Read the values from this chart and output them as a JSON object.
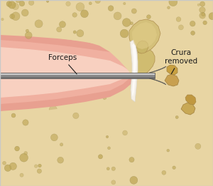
{
  "bg_bone_color": "#e8d5a3",
  "canal_outer_color": "#e8a090",
  "canal_inner_color": "#d4706a",
  "middle_ear_color": "#c85050",
  "ossicle_color": "#d4c080",
  "ossicle_shadow": "#b8a060",
  "forceps_body": "#909090",
  "forceps_highlight": "#d0d0d0",
  "crura_color": "#c8a050",
  "label_color": "#1a1a1a",
  "figsize": [
    3.0,
    2.61
  ],
  "dpi": 100,
  "label_forceps": "Forceps",
  "label_crura": "Crura\nremoved",
  "border_color": "#c8c8c8"
}
